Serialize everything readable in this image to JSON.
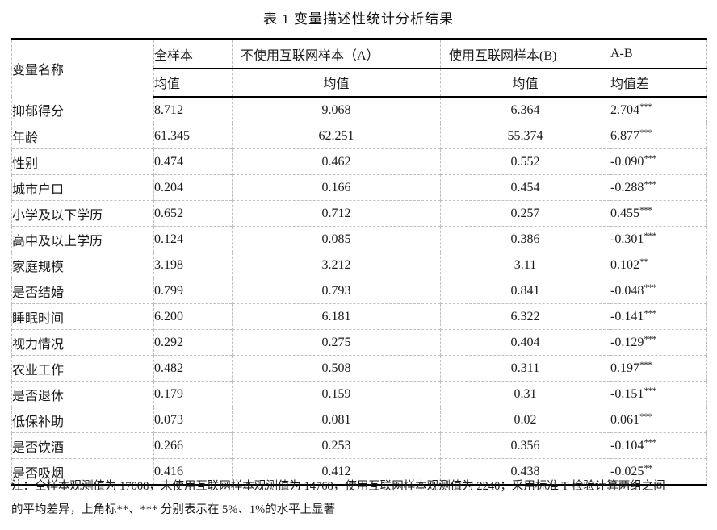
{
  "page": {
    "title": "表 1 变量描述性统计分析结果"
  },
  "colors": {
    "strong_border": "#000000",
    "dashed_border": "#bfbfbf",
    "text": "#1a1a1a",
    "background": "#ffffff"
  },
  "table": {
    "header": {
      "col_variable": "变量名称",
      "col_full_sample": "全样本",
      "col_sample_a": "不使用互联网样本（A）",
      "col_sample_b": "使用互联网样本(B)",
      "col_diff": "A-B",
      "sub_mean_full": "均值",
      "sub_mean_a": "均值",
      "sub_mean_b": "均值",
      "sub_mean_diff": "均值差"
    },
    "rows": [
      {
        "name": "抑郁得分",
        "full": "8.712",
        "a": "9.068",
        "b": "6.364",
        "diff": "2.704",
        "stars": "***"
      },
      {
        "name": "年龄",
        "full": "61.345",
        "a": "62.251",
        "b": "55.374",
        "diff": "6.877",
        "stars": "***"
      },
      {
        "name": "性别",
        "full": "0.474",
        "a": "0.462",
        "b": "0.552",
        "diff": "-0.090",
        "stars": "***"
      },
      {
        "name": "城市户口",
        "full": "0.204",
        "a": "0.166",
        "b": "0.454",
        "diff": "-0.288",
        "stars": "***"
      },
      {
        "name": "小学及以下学历",
        "full": "0.652",
        "a": "0.712",
        "b": "0.257",
        "diff": "0.455",
        "stars": "***"
      },
      {
        "name": "高中及以上学历",
        "full": "0.124",
        "a": "0.085",
        "b": "0.386",
        "diff": "-0.301",
        "stars": "***"
      },
      {
        "name": "家庭规模",
        "full": "3.198",
        "a": "3.212",
        "b": "3.11",
        "diff": "0.102",
        "stars": "**"
      },
      {
        "name": "是否结婚",
        "full": "0.799",
        "a": "0.793",
        "b": "0.841",
        "diff": "-0.048",
        "stars": "***"
      },
      {
        "name": "睡眠时间",
        "full": "6.200",
        "a": "6.181",
        "b": "6.322",
        "diff": "-0.141",
        "stars": "***"
      },
      {
        "name": "视力情况",
        "full": "0.292",
        "a": "0.275",
        "b": "0.404",
        "diff": "-0.129",
        "stars": "***"
      },
      {
        "name": "农业工作",
        "full": "0.482",
        "a": "0.508",
        "b": "0.311",
        "diff": "0.197",
        "stars": "***"
      },
      {
        "name": "是否退休",
        "full": "0.179",
        "a": "0.159",
        "b": "0.31",
        "diff": "-0.151",
        "stars": "***"
      },
      {
        "name": "低保补助",
        "full": "0.073",
        "a": "0.081",
        "b": "0.02",
        "diff": "0.061",
        "stars": "***"
      },
      {
        "name": "是否饮酒",
        "full": "0.266",
        "a": "0.253",
        "b": "0.356",
        "diff": "-0.104",
        "stars": "***"
      },
      {
        "name": "是否吸烟",
        "full": "0.416",
        "a": "0.412",
        "b": "0.438",
        "diff": "-0.025",
        "stars": "**"
      }
    ]
  },
  "footnote": {
    "line1": "注：全样本观测值为 17008，未使用互联网样本观测值为 14768，使用互联网样本观测值为 2240；采用标准 T 检验计算两组之间",
    "line2": "的平均差异，上角标**、*** 分别表示在 5%、1%的水平上显著"
  }
}
